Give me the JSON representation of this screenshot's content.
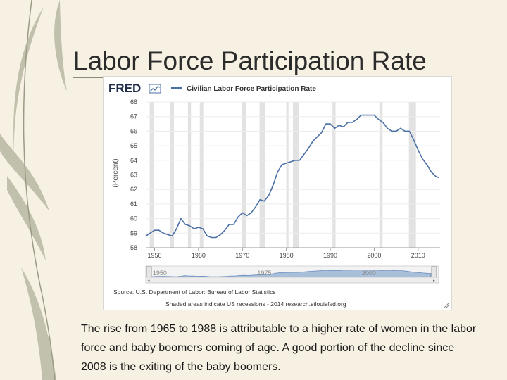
{
  "slide": {
    "title": "Labor Force Participation Rate",
    "caption": "The rise from 1965 to 1988 is attributable to a higher rate of women in the labor force and baby boomers coming of age. A good portion of the decline since 2008 is the exiting of the baby boomers."
  },
  "chart_data": {
    "type": "line",
    "logo": "FRED",
    "series": [
      {
        "name": "Civilian Labor Force Participation Rate",
        "color": "#4a6fa5",
        "x": [
          1948,
          1949,
          1950,
          1951,
          1952,
          1953,
          1954,
          1955,
          1956,
          1957,
          1958,
          1959,
          1960,
          1961,
          1962,
          1963,
          1964,
          1965,
          1966,
          1967,
          1968,
          1969,
          1970,
          1971,
          1972,
          1973,
          1974,
          1975,
          1976,
          1977,
          1978,
          1979,
          1980,
          1981,
          1982,
          1983,
          1984,
          1985,
          1986,
          1987,
          1988,
          1989,
          1990,
          1991,
          1992,
          1993,
          1994,
          1995,
          1996,
          1997,
          1998,
          1999,
          2000,
          2001,
          2002,
          2003,
          2004,
          2005,
          2006,
          2007,
          2008,
          2009,
          2010,
          2011,
          2012,
          2013,
          2014,
          2014.8
        ],
        "y": [
          58.8,
          59.0,
          59.2,
          59.2,
          59.0,
          58.9,
          58.8,
          59.3,
          60.0,
          59.6,
          59.5,
          59.3,
          59.4,
          59.3,
          58.8,
          58.7,
          58.7,
          58.9,
          59.2,
          59.6,
          59.6,
          60.1,
          60.4,
          60.2,
          60.4,
          60.8,
          61.3,
          61.2,
          61.6,
          62.3,
          63.2,
          63.7,
          63.8,
          63.9,
          64.0,
          64.0,
          64.4,
          64.8,
          65.3,
          65.6,
          65.9,
          66.5,
          66.5,
          66.2,
          66.4,
          66.3,
          66.6,
          66.6,
          66.8,
          67.1,
          67.1,
          67.1,
          67.1,
          66.8,
          66.6,
          66.2,
          66.0,
          66.0,
          66.2,
          66.0,
          66.0,
          65.4,
          64.7,
          64.1,
          63.7,
          63.2,
          62.9,
          62.8
        ]
      }
    ],
    "ylabel": "(Percent)",
    "yticks": [
      58,
      59,
      60,
      61,
      62,
      63,
      64,
      65,
      66,
      67,
      68
    ],
    "xticks": [
      1950,
      1960,
      1970,
      1980,
      1990,
      2000,
      2010
    ],
    "ylim": [
      58,
      68
    ],
    "xlim": [
      1948,
      2015
    ],
    "recessions": [
      [
        1948.9,
        1949.8
      ],
      [
        1953.5,
        1954.4
      ],
      [
        1957.6,
        1958.3
      ],
      [
        1960.3,
        1961.1
      ],
      [
        1969.9,
        1970.9
      ],
      [
        1973.9,
        1975.2
      ],
      [
        1980.0,
        1980.5
      ],
      [
        1981.5,
        1982.9
      ],
      [
        1990.5,
        1991.2
      ],
      [
        2001.2,
        2001.9
      ],
      [
        2007.9,
        2009.5
      ]
    ],
    "navigator_labels": [
      "1950",
      "1975",
      "2000"
    ],
    "source": "Source: U.S. Department of Labor: Bureau of Labor Statistics",
    "footer": "Shaded areas indicate US recessions - 2014 research.stlouisfed.org",
    "grid": true,
    "legend_position": "top-left"
  },
  "colors": {
    "line": "#4a6fa5",
    "recession": "#e2e2e2",
    "navigator_fill": "#a8bfd9"
  }
}
